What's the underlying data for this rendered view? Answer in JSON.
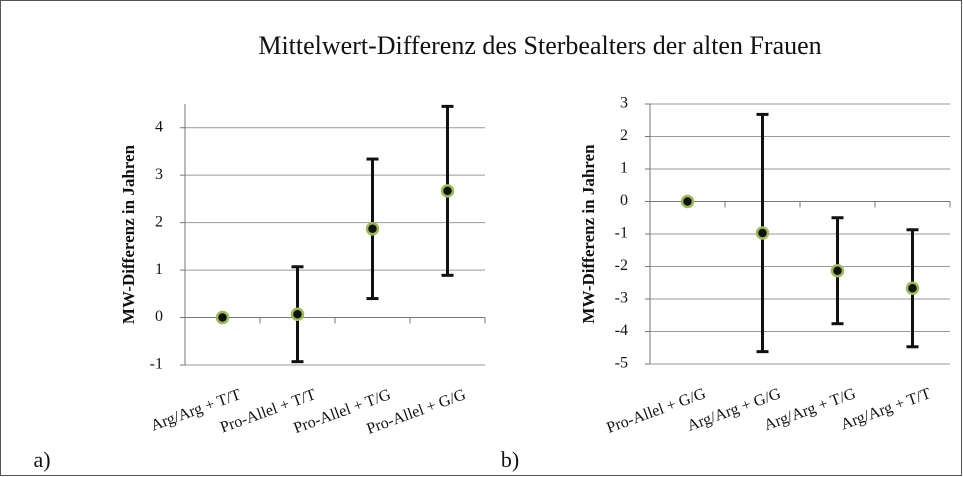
{
  "title": "Mittelwert-Differenz des Sterbealters der alten Frauen",
  "chart_data": [
    {
      "type": "errorbar",
      "label": "a)",
      "y_label": "MW-Differenz in Jahren",
      "categories": [
        "Arg/Arg + T/T",
        "Pro-Allel + T/T",
        "Pro-Allel + T/G",
        "Pro-Allel + G/G"
      ],
      "values": [
        0,
        0.07,
        1.87,
        2.67
      ],
      "errors": [
        0,
        1.0,
        1.47,
        1.78
      ],
      "color": "#111111",
      "edge_color": "#9bbb59",
      "ylim": [
        -1,
        4.5
      ],
      "yticks": [
        -1,
        0,
        1,
        2,
        3,
        4
      ],
      "grid": true
    },
    {
      "type": "errorbar",
      "label": "b)",
      "y_label": "MW-Differenz in Jahren",
      "categories": [
        "Pro-Allel + G/G",
        "Arg/Arg + G/G",
        "Arg/Arg + T/G",
        "Arg/Arg + T/T"
      ],
      "values": [
        0,
        -0.97,
        -2.13,
        -2.67
      ],
      "errors": [
        0,
        3.65,
        1.63,
        1.8
      ],
      "color": "#111111",
      "edge_color": "#9bbb59",
      "ylim": [
        -5,
        3
      ],
      "yticks": [
        -5,
        -4,
        -3,
        -2,
        -1,
        0,
        1,
        2,
        3
      ],
      "grid": true
    }
  ]
}
